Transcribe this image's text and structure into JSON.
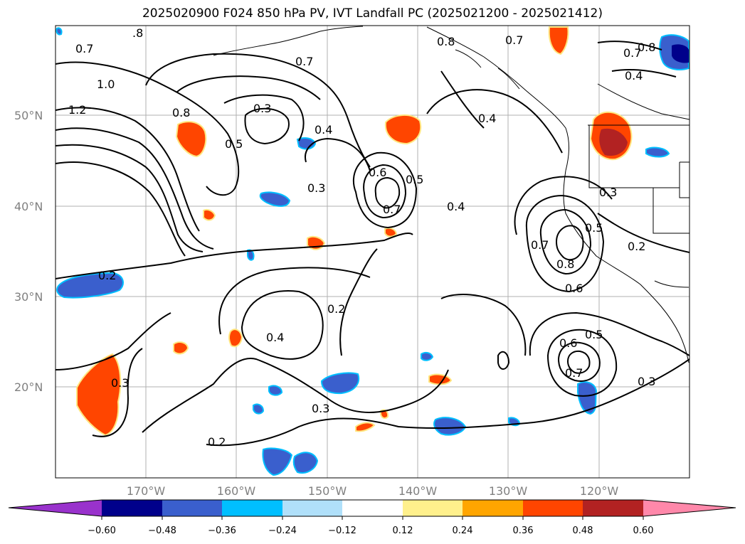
{
  "title": "2025020900 F024 850 hPa PV, IVT Landfall PC (2025021200 - 2025021412)",
  "map": {
    "lat_labels": [
      "50°N",
      "40°N",
      "30°N",
      "20°N"
    ],
    "lon_labels": [
      "170°W",
      "160°W",
      "150°W",
      "140°W",
      "130°W",
      "120°W"
    ],
    "contour_labels": [
      "0.7",
      ".8",
      "0.7",
      "0.8",
      "0.7",
      "0.4",
      "0.8",
      "0.7",
      "1.0",
      "1.2",
      "0.8",
      "0.3",
      "0.5",
      "0.4",
      "0.4",
      "0.3",
      "0.6",
      "0.5",
      "0.7",
      "0.4",
      "0.3",
      "0.5",
      "0.7",
      "0.8",
      "0.6",
      "0.2",
      "0.2",
      "0.2",
      "0.4",
      "0.6",
      "0.5",
      "0.7",
      "0.3",
      "0.3",
      "0.3",
      "0.2"
    ],
    "colors": {
      "negative_strong": "#00008b",
      "negative_mid": "#3a5fcd",
      "negative_light": "#00bfff",
      "positive_light": "#ffe680",
      "positive_mid": "#ffa500",
      "positive_strong": "#ff4500",
      "positive_darkest": "#b22222"
    }
  },
  "colorbar": {
    "ticks": [
      "−0.60",
      "−0.48",
      "−0.36",
      "−0.24",
      "−0.12",
      "0.12",
      "0.24",
      "0.36",
      "0.48",
      "0.60"
    ],
    "colors": [
      "#9932cc",
      "#00008b",
      "#3a5fcd",
      "#00bfff",
      "#b0e0fa",
      "#ffffff",
      "#fff08c",
      "#ffa500",
      "#ff4500",
      "#b22222",
      "#ff88aa"
    ]
  }
}
